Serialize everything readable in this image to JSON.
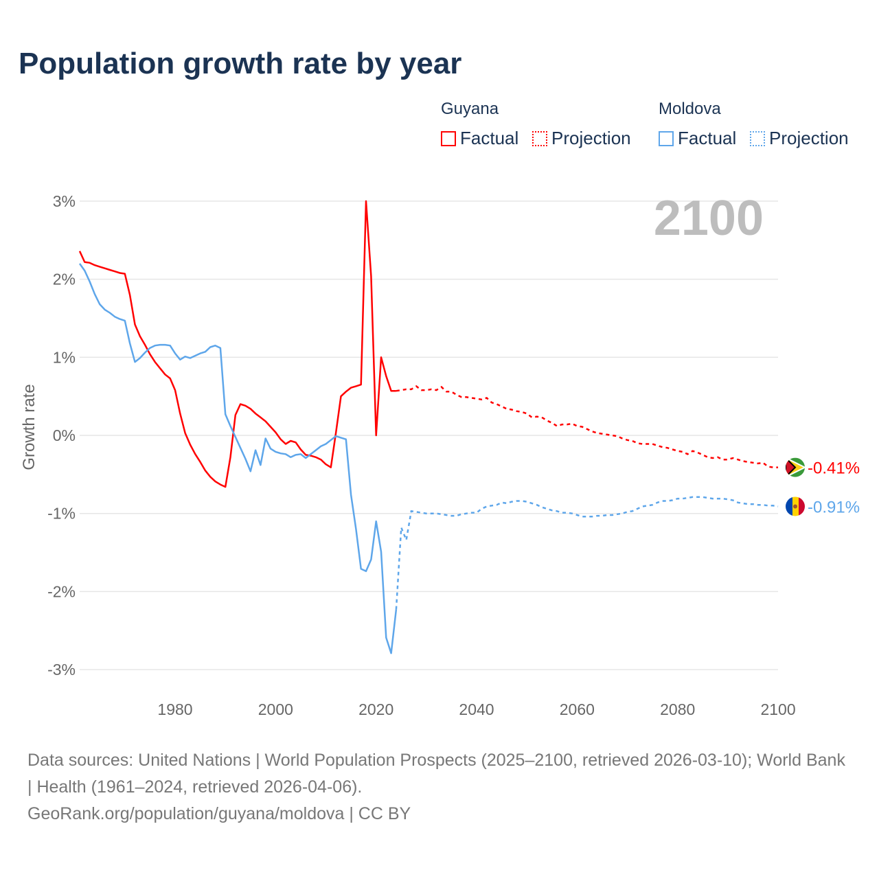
{
  "title": "Population growth rate by year",
  "legend": {
    "groups": [
      {
        "name": "Guyana",
        "factual": "Factual",
        "projection": "Projection",
        "color": "#ff0000"
      },
      {
        "name": "Moldova",
        "factual": "Factual",
        "projection": "Projection",
        "color": "#5ea6ea"
      }
    ]
  },
  "source": {
    "line1": "Data sources: United Nations | World Population Prospects (2025–2100, retrieved 2026-03-10); World Bank | Health (1961–2024, retrieved 2026-04-06).",
    "line2": "GeoRank.org/population/guyana/moldova | CC BY"
  },
  "chart_data": {
    "type": "line",
    "title": "Population growth rate by year",
    "xlabel": "",
    "ylabel": "Growth rate",
    "current_year_label": "2100",
    "xlim": [
      1961,
      2100
    ],
    "ylim": [
      -3.5,
      3.5
    ],
    "xticks": [
      1980,
      2000,
      2020,
      2040,
      2060,
      2080,
      2100
    ],
    "xtick_labels": [
      "1980",
      "2000",
      "2020",
      "2040",
      "2060",
      "2080",
      "2100"
    ],
    "yticks": [
      3,
      2,
      1,
      0,
      -1,
      -2,
      -3
    ],
    "ytick_labels": [
      "3%",
      "2%",
      "1%",
      "0%",
      "-1%",
      "-2%",
      "-3%"
    ],
    "series": [
      {
        "name": "Guyana",
        "color": "#ff0000",
        "end_label": "-0.41%",
        "flag": "guyana-flag",
        "factual_start": 1961,
        "factual": [
          2.36,
          2.22,
          2.21,
          2.18,
          2.16,
          2.14,
          2.12,
          2.1,
          2.08,
          2.07,
          1.8,
          1.42,
          1.27,
          1.16,
          1.04,
          0.94,
          0.86,
          0.78,
          0.73,
          0.58,
          0.28,
          0.03,
          -0.12,
          -0.24,
          -0.34,
          -0.45,
          -0.53,
          -0.59,
          -0.63,
          -0.66,
          -0.28,
          0.26,
          0.4,
          0.38,
          0.34,
          0.28,
          0.23,
          0.18,
          0.11,
          0.04,
          -0.05,
          -0.11,
          -0.07,
          -0.09,
          -0.18,
          -0.25,
          -0.26,
          -0.28,
          -0.31,
          -0.37,
          -0.41,
          0.03,
          0.5,
          0.56,
          0.61,
          0.63,
          0.65,
          3.0,
          2.04,
          0.0,
          1.0,
          0.76,
          0.57,
          0.57
        ],
        "projection_start": 2024,
        "projection": [
          0.57,
          0.58,
          0.59,
          0.59,
          0.63,
          0.58,
          0.58,
          0.59,
          0.58,
          0.62,
          0.56,
          0.56,
          0.52,
          0.49,
          0.49,
          0.48,
          0.47,
          0.46,
          0.48,
          0.42,
          0.4,
          0.37,
          0.34,
          0.33,
          0.31,
          0.3,
          0.28,
          0.23,
          0.24,
          0.23,
          0.19,
          0.16,
          0.12,
          0.14,
          0.14,
          0.15,
          0.12,
          0.11,
          0.08,
          0.05,
          0.03,
          0.02,
          0.01,
          0.0,
          -0.01,
          -0.04,
          -0.06,
          -0.07,
          -0.1,
          -0.11,
          -0.11,
          -0.11,
          -0.13,
          -0.15,
          -0.16,
          -0.18,
          -0.2,
          -0.21,
          -0.24,
          -0.2,
          -0.22,
          -0.25,
          -0.28,
          -0.29,
          -0.28,
          -0.31,
          -0.31,
          -0.29,
          -0.31,
          -0.33,
          -0.34,
          -0.35,
          -0.36,
          -0.35,
          -0.4,
          -0.41,
          -0.41
        ]
      },
      {
        "name": "Moldova",
        "color": "#5ea6ea",
        "end_label": "-0.91%",
        "flag": "moldova-flag",
        "factual_start": 1961,
        "factual": [
          2.2,
          2.11,
          1.97,
          1.81,
          1.68,
          1.61,
          1.57,
          1.52,
          1.49,
          1.47,
          1.18,
          0.94,
          0.99,
          1.06,
          1.12,
          1.15,
          1.16,
          1.16,
          1.15,
          1.05,
          0.97,
          1.01,
          0.99,
          1.02,
          1.05,
          1.07,
          1.13,
          1.15,
          1.12,
          0.27,
          0.12,
          -0.02,
          -0.16,
          -0.3,
          -0.46,
          -0.19,
          -0.38,
          -0.04,
          -0.17,
          -0.21,
          -0.23,
          -0.24,
          -0.28,
          -0.25,
          -0.24,
          -0.29,
          -0.24,
          -0.19,
          -0.14,
          -0.11,
          -0.06,
          -0.01,
          -0.03,
          -0.05,
          -0.76,
          -1.2,
          -1.71,
          -1.74,
          -1.59,
          -1.1,
          -1.49,
          -2.59,
          -2.79,
          -2.23
        ],
        "projection_start": 2024,
        "projection": [
          -2.23,
          -1.18,
          -1.34,
          -0.97,
          -0.98,
          -0.99,
          -1.0,
          -1.0,
          -1.0,
          -1.01,
          -1.02,
          -1.03,
          -1.03,
          -1.01,
          -1.0,
          -0.99,
          -0.99,
          -0.94,
          -0.91,
          -0.9,
          -0.89,
          -0.86,
          -0.87,
          -0.85,
          -0.84,
          -0.84,
          -0.85,
          -0.87,
          -0.89,
          -0.92,
          -0.94,
          -0.96,
          -0.97,
          -0.99,
          -0.99,
          -1.0,
          -1.02,
          -1.04,
          -1.04,
          -1.04,
          -1.03,
          -1.03,
          -1.02,
          -1.02,
          -1.01,
          -1.0,
          -0.98,
          -0.97,
          -0.94,
          -0.91,
          -0.9,
          -0.89,
          -0.86,
          -0.84,
          -0.84,
          -0.83,
          -0.81,
          -0.81,
          -0.8,
          -0.79,
          -0.79,
          -0.79,
          -0.8,
          -0.81,
          -0.81,
          -0.81,
          -0.82,
          -0.83,
          -0.86,
          -0.87,
          -0.88,
          -0.88,
          -0.89,
          -0.89,
          -0.9,
          -0.9,
          -0.91
        ]
      }
    ]
  }
}
